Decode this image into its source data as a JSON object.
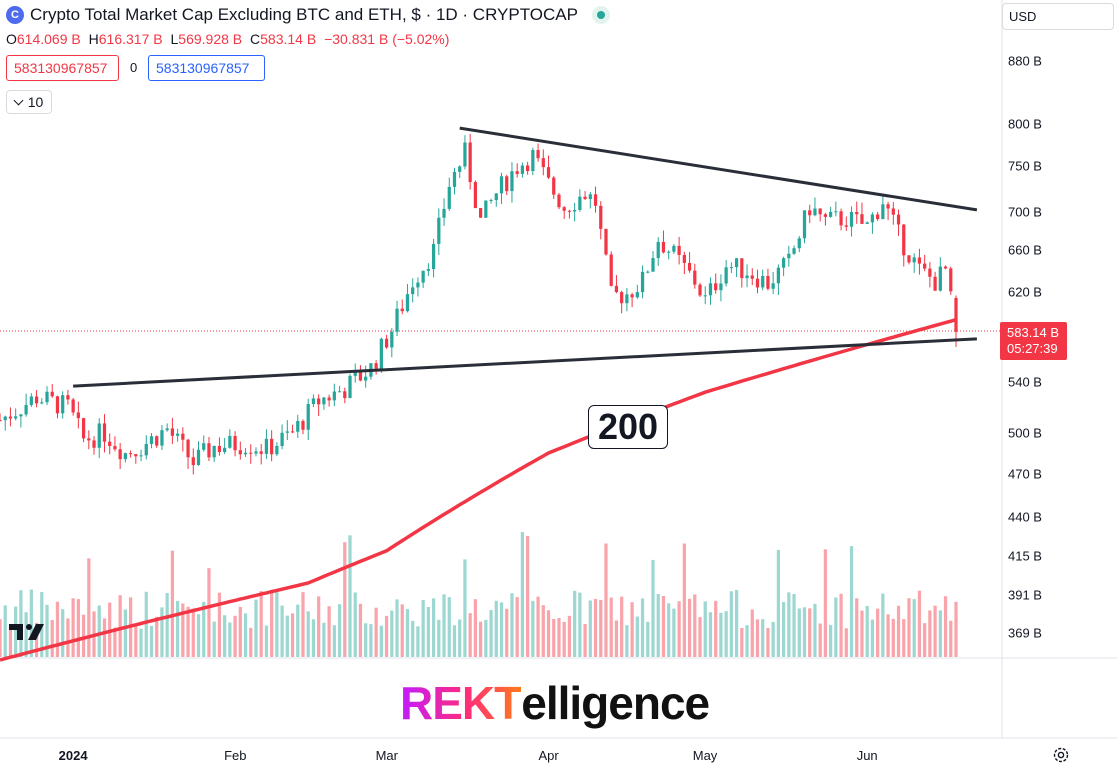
{
  "header": {
    "symbol_icon": "crypto-total-icon",
    "symbol_glyph": "C",
    "title": "Crypto Total Market Cap Excluding BTC and ETH, $ · 1D · CRYPTOCAP",
    "status_icon": "market-open-dot-icon"
  },
  "ohlc": {
    "o_label": "O",
    "o_value": "614.069 B",
    "h_label": "H",
    "h_value": "616.317 B",
    "l_label": "L",
    "l_value": "569.928 B",
    "c_label": "C",
    "c_value": "583.14 B",
    "change": "−30.831 B (−5.02%)"
  },
  "price_boxes": {
    "sell": "583130967857",
    "spread": "0",
    "buy": "583130967857"
  },
  "indicators_button": {
    "count": "10",
    "icon": "chevron-down-icon"
  },
  "currency_select": {
    "value": "USD"
  },
  "chart_data": {
    "type": "candlestick",
    "y_scale": "log",
    "y_ticks": [
      "880 B",
      "800 B",
      "750 B",
      "700 B",
      "660 B",
      "620 B",
      "540 B",
      "500 B",
      "470 B",
      "440 B",
      "415 B",
      "391 B",
      "369 B"
    ],
    "y_tick_values": [
      880,
      800,
      750,
      700,
      660,
      620,
      540,
      500,
      470,
      440,
      415,
      391,
      369
    ],
    "x_ticks": [
      "2024",
      "Feb",
      "Mar",
      "Apr",
      "May",
      "Jun"
    ],
    "x_tick_dates": [
      "2024-01-01",
      "2024-02-01",
      "2024-03-01",
      "2024-04-01",
      "2024-05-01",
      "2024-06-01"
    ],
    "date_range": [
      "2023-12-18",
      "2024-06-18"
    ],
    "ylim": [
      350,
      960
    ],
    "last_price": {
      "value": 583.14,
      "label": "583.14 B",
      "countdown": "05:27:39"
    },
    "close_path": [
      [
        "2023-12-18",
        510
      ],
      [
        "2023-12-25",
        528
      ],
      [
        "2023-12-31",
        520
      ],
      [
        "2024-01-03",
        495
      ],
      [
        "2024-01-07",
        500
      ],
      [
        "2024-01-11",
        485
      ],
      [
        "2024-01-14",
        490
      ],
      [
        "2024-01-19",
        503
      ],
      [
        "2024-01-24",
        478
      ],
      [
        "2024-01-28",
        490
      ],
      [
        "2024-02-03",
        492
      ],
      [
        "2024-02-07",
        488
      ],
      [
        "2024-02-12",
        500
      ],
      [
        "2024-02-17",
        525
      ],
      [
        "2024-02-22",
        535
      ],
      [
        "2024-02-27",
        552
      ],
      [
        "2024-03-02",
        585
      ],
      [
        "2024-03-06",
        630
      ],
      [
        "2024-03-10",
        660
      ],
      [
        "2024-03-13",
        730
      ],
      [
        "2024-03-16",
        765
      ],
      [
        "2024-03-19",
        690
      ],
      [
        "2024-03-22",
        720
      ],
      [
        "2024-03-26",
        750
      ],
      [
        "2024-03-29",
        762
      ],
      [
        "2024-04-01",
        730
      ],
      [
        "2024-04-04",
        705
      ],
      [
        "2024-04-08",
        720
      ],
      [
        "2024-04-10",
        710
      ],
      [
        "2024-04-13",
        615
      ],
      [
        "2024-04-16",
        618
      ],
      [
        "2024-04-19",
        630
      ],
      [
        "2024-04-22",
        672
      ],
      [
        "2024-04-25",
        655
      ],
      [
        "2024-04-29",
        630
      ],
      [
        "2024-05-01",
        612
      ],
      [
        "2024-05-05",
        645
      ],
      [
        "2024-05-09",
        640
      ],
      [
        "2024-05-13",
        628
      ],
      [
        "2024-05-17",
        648
      ],
      [
        "2024-05-21",
        705
      ],
      [
        "2024-05-24",
        690
      ],
      [
        "2024-05-28",
        693
      ],
      [
        "2024-06-01",
        685
      ],
      [
        "2024-06-04",
        712
      ],
      [
        "2024-06-07",
        675
      ],
      [
        "2024-06-11",
        640
      ],
      [
        "2024-06-14",
        630
      ],
      [
        "2024-06-16",
        640
      ],
      [
        "2024-06-18",
        583
      ]
    ],
    "trendlines": [
      {
        "name": "resistance",
        "from": [
          "2024-03-15",
          795
        ],
        "to": [
          "2024-06-22",
          702
        ]
      },
      {
        "name": "support",
        "from": [
          "2024-01-01",
          537
        ],
        "to": [
          "2024-06-22",
          577
        ]
      }
    ],
    "moving_average": {
      "label": "200",
      "points": [
        [
          "2023-12-18",
          354
        ],
        [
          "2024-01-15",
          375
        ],
        [
          "2024-02-15",
          398
        ],
        [
          "2024-03-01",
          418
        ],
        [
          "2024-04-01",
          485
        ],
        [
          "2024-05-01",
          532
        ],
        [
          "2024-06-01",
          572
        ],
        [
          "2024-06-18",
          594
        ]
      ]
    },
    "volume": {
      "description_hidden": true
    }
  },
  "branding": {
    "logo_text_accent": "REKT",
    "logo_text_rest": "elligence"
  },
  "tradingview_logo_icon": "tradingview-logo-icon",
  "settings_icon": "gear-icon"
}
